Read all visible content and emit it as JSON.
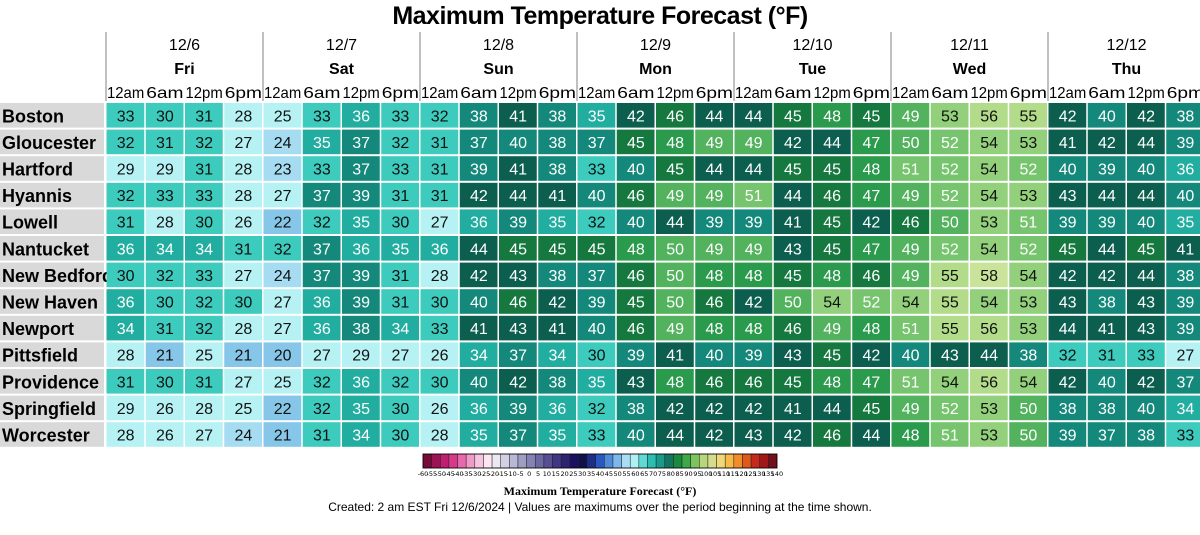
{
  "chart_data": {
    "type": "heatmap",
    "title": "Maximum Temperature Forecast (°F)",
    "days": [
      {
        "date": "12/6",
        "name": "Fri"
      },
      {
        "date": "12/7",
        "name": "Sat"
      },
      {
        "date": "12/8",
        "name": "Sun"
      },
      {
        "date": "12/9",
        "name": "Mon"
      },
      {
        "date": "12/10",
        "name": "Tue"
      },
      {
        "date": "12/11",
        "name": "Wed"
      },
      {
        "date": "12/12",
        "name": "Thu"
      }
    ],
    "hours": [
      "12am",
      "6am",
      "12pm",
      "6pm"
    ],
    "rows": [
      {
        "city": "Boston",
        "values": [
          33,
          30,
          31,
          28,
          25,
          33,
          36,
          33,
          32,
          38,
          41,
          38,
          35,
          42,
          46,
          44,
          44,
          45,
          48,
          45,
          49,
          53,
          56,
          55,
          42,
          40,
          42,
          38
        ]
      },
      {
        "city": "Gloucester",
        "values": [
          32,
          31,
          32,
          27,
          24,
          35,
          37,
          32,
          31,
          37,
          40,
          38,
          37,
          45,
          48,
          49,
          49,
          42,
          44,
          47,
          50,
          52,
          54,
          53,
          41,
          42,
          44,
          39
        ]
      },
      {
        "city": "Hartford",
        "values": [
          29,
          29,
          31,
          28,
          23,
          33,
          37,
          33,
          31,
          39,
          41,
          38,
          33,
          40,
          45,
          44,
          44,
          45,
          45,
          48,
          51,
          52,
          54,
          52,
          40,
          39,
          40,
          36
        ]
      },
      {
        "city": "Hyannis",
        "values": [
          32,
          33,
          33,
          28,
          27,
          37,
          39,
          31,
          31,
          42,
          44,
          41,
          40,
          46,
          49,
          49,
          51,
          44,
          46,
          47,
          49,
          52,
          54,
          53,
          43,
          44,
          44,
          40
        ]
      },
      {
        "city": "Lowell",
        "values": [
          31,
          28,
          30,
          26,
          22,
          32,
          35,
          30,
          27,
          36,
          39,
          35,
          32,
          40,
          44,
          39,
          39,
          41,
          45,
          42,
          46,
          50,
          53,
          51,
          39,
          39,
          40,
          35
        ]
      },
      {
        "city": "Nantucket",
        "values": [
          36,
          34,
          34,
          31,
          32,
          37,
          36,
          35,
          36,
          44,
          45,
          45,
          45,
          48,
          50,
          49,
          49,
          43,
          45,
          47,
          49,
          52,
          54,
          52,
          45,
          44,
          45,
          41
        ]
      },
      {
        "city": "New Bedford",
        "values": [
          30,
          32,
          33,
          27,
          24,
          37,
          39,
          31,
          28,
          42,
          43,
          38,
          37,
          46,
          50,
          48,
          48,
          45,
          48,
          46,
          49,
          55,
          58,
          54,
          42,
          42,
          44,
          38
        ]
      },
      {
        "city": "New Haven",
        "values": [
          36,
          30,
          32,
          30,
          27,
          36,
          39,
          31,
          30,
          40,
          46,
          42,
          39,
          45,
          50,
          46,
          42,
          50,
          54,
          52,
          54,
          55,
          54,
          53,
          43,
          38,
          43,
          39
        ]
      },
      {
        "city": "Newport",
        "values": [
          34,
          31,
          32,
          28,
          27,
          36,
          38,
          34,
          33,
          41,
          43,
          41,
          40,
          46,
          49,
          48,
          48,
          46,
          49,
          48,
          51,
          55,
          56,
          53,
          44,
          41,
          43,
          39
        ]
      },
      {
        "city": "Pittsfield",
        "values": [
          28,
          21,
          25,
          21,
          20,
          27,
          29,
          27,
          26,
          34,
          37,
          34,
          30,
          39,
          41,
          40,
          39,
          43,
          45,
          42,
          40,
          43,
          44,
          38,
          32,
          31,
          33,
          27
        ]
      },
      {
        "city": "Providence",
        "values": [
          31,
          30,
          31,
          27,
          25,
          32,
          36,
          32,
          30,
          40,
          42,
          38,
          35,
          43,
          48,
          46,
          46,
          45,
          48,
          47,
          51,
          54,
          56,
          54,
          42,
          40,
          42,
          37
        ]
      },
      {
        "city": "Springfield",
        "values": [
          29,
          26,
          28,
          25,
          22,
          32,
          35,
          30,
          26,
          36,
          39,
          36,
          32,
          38,
          42,
          42,
          42,
          41,
          44,
          45,
          49,
          52,
          53,
          50,
          38,
          38,
          40,
          34
        ]
      },
      {
        "city": "Worcester",
        "values": [
          28,
          26,
          27,
          24,
          21,
          31,
          34,
          30,
          28,
          35,
          37,
          35,
          33,
          40,
          44,
          42,
          43,
          42,
          46,
          44,
          48,
          51,
          53,
          50,
          39,
          37,
          38,
          33
        ]
      }
    ],
    "colorbar": {
      "title": "Maximum Temperature Forecast (°F)",
      "tick_labels": [
        "-60",
        "-55",
        "-50",
        "-45",
        "-40",
        "-35",
        "-30",
        "-25",
        "-20",
        "-15",
        "-10",
        "-5",
        "0",
        "5",
        "10",
        "15",
        "20",
        "25",
        "30",
        "35",
        "40",
        "45",
        "50",
        "55",
        "60",
        "65",
        "70",
        "75",
        "80",
        "85",
        "90",
        "95",
        "100",
        "105",
        "110",
        "115",
        "120",
        "125",
        "130",
        "135",
        "140"
      ],
      "colors": [
        "#7a0a3a",
        "#9b1454",
        "#c01e70",
        "#d9388c",
        "#e868ad",
        "#f09ac8",
        "#f6c3e0",
        "#fde6f2",
        "#ece7f0",
        "#d3d0e4",
        "#b9b8d6",
        "#9e9ec5",
        "#8582b4",
        "#6d67a4",
        "#574f94",
        "#423784",
        "#2d2273",
        "#1a1060",
        "#10104a",
        "#1b2f8a",
        "#2a57c2",
        "#4f8bdc",
        "#7bb8ec",
        "#aadcf6",
        "#aef0f4",
        "#5fd9d3",
        "#2bbfb2",
        "#1a9a8a",
        "#13745f",
        "#1a8a3f",
        "#3fa84a",
        "#7cc45e",
        "#b7d77a",
        "#d4dc8e",
        "#f0d777",
        "#f6b94a",
        "#f08d2a",
        "#e0591b",
        "#c72a1a",
        "#a01818",
        "#74101a"
      ]
    }
  },
  "caption": "Created: 2 am EST Fri 12/6/2024  |  Values are maximums over the period beginning at the time shown."
}
